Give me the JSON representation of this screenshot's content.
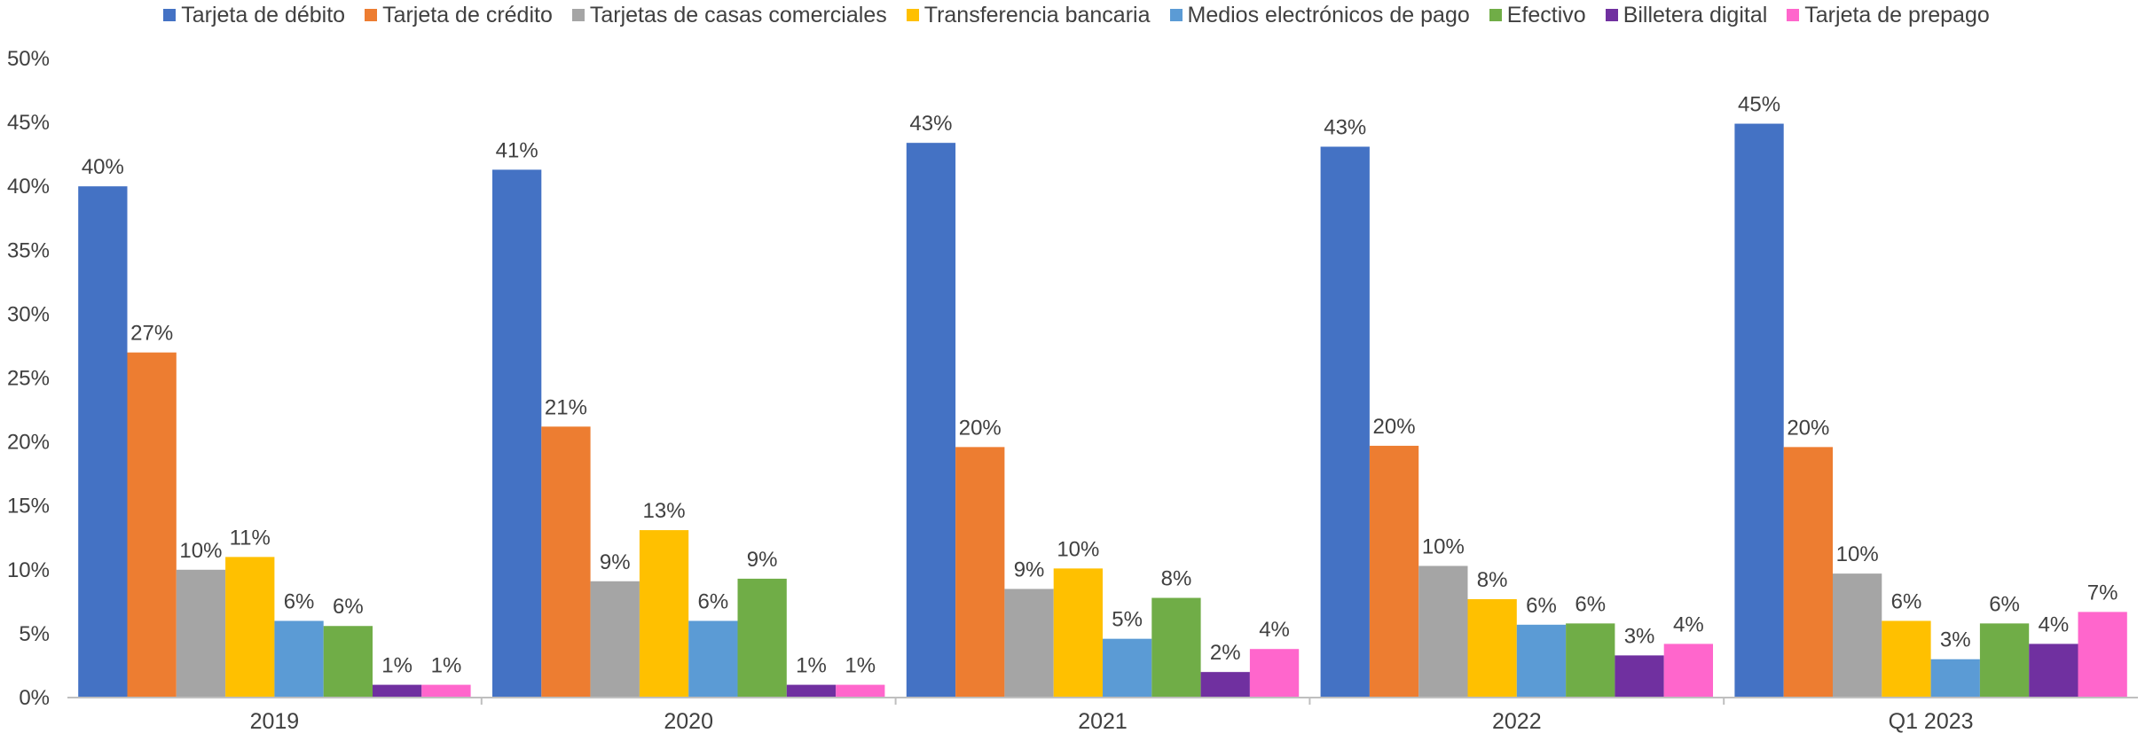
{
  "chart_data": {
    "type": "bar",
    "categories": [
      "2019",
      "2020",
      "2021",
      "2022",
      "Q1 2023"
    ],
    "ylim": [
      0,
      50
    ],
    "yticks": [
      "0%",
      "5%",
      "10%",
      "15%",
      "20%",
      "25%",
      "30%",
      "35%",
      "40%",
      "45%",
      "50%"
    ],
    "grid": false,
    "legend_position": "top",
    "series": [
      {
        "name": "Tarjeta de débito",
        "color": "#4472C4",
        "values": [
          40,
          41.3,
          43.4,
          43.1,
          44.9
        ],
        "labels": [
          "40%",
          "41%",
          "43%",
          "43%",
          "45%"
        ]
      },
      {
        "name": "Tarjeta de crédito",
        "color": "#ED7D31",
        "values": [
          27,
          21.2,
          19.6,
          19.7,
          19.6
        ],
        "labels": [
          "27%",
          "21%",
          "20%",
          "20%",
          "20%"
        ]
      },
      {
        "name": "Tarjetas de casas comerciales",
        "color": "#A5A5A5",
        "values": [
          10,
          9.1,
          8.5,
          10.3,
          9.7
        ],
        "labels": [
          "10%",
          "9%",
          "9%",
          "10%",
          "10%"
        ]
      },
      {
        "name": "Transferencia bancaria",
        "color": "#FFC000",
        "values": [
          11,
          13.1,
          10.1,
          7.7,
          6.0
        ],
        "labels": [
          "11%",
          "13%",
          "10%",
          "8%",
          "6%"
        ]
      },
      {
        "name": "Medios electrónicos de pago",
        "color": "#5B9BD5",
        "values": [
          6,
          6.0,
          4.6,
          5.7,
          3.0
        ],
        "labels": [
          "6%",
          "6%",
          "5%",
          "6%",
          "3%"
        ]
      },
      {
        "name": "Efectivo",
        "color": "#70AD47",
        "values": [
          5.6,
          9.3,
          7.8,
          5.8,
          5.8
        ],
        "labels": [
          "6%",
          "9%",
          "8%",
          "6%",
          "6%"
        ]
      },
      {
        "name": "Billetera digital",
        "color": "#7030A0",
        "values": [
          1,
          1,
          2.0,
          3.3,
          4.2
        ],
        "labels": [
          "1%",
          "1%",
          "2%",
          "3%",
          "4%"
        ]
      },
      {
        "name": "Tarjeta de prepago",
        "color": "#FF66CC",
        "values": [
          1,
          1,
          3.8,
          4.2,
          6.7
        ],
        "labels": [
          "1%",
          "1%",
          "4%",
          "4%",
          "7%"
        ]
      }
    ]
  }
}
